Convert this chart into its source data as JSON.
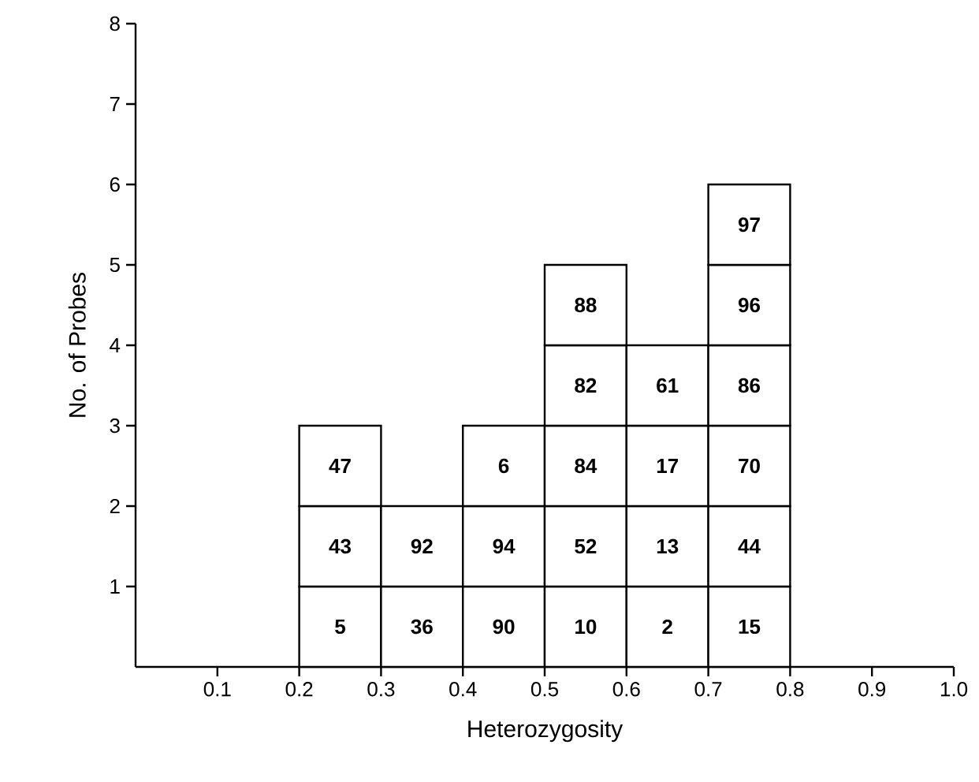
{
  "chart_data": {
    "type": "bar",
    "stacked": true,
    "xlabel": "Heterozygosity",
    "ylabel": "No. of Probes",
    "x": [
      0.25,
      0.35,
      0.45,
      0.55,
      0.65,
      0.75
    ],
    "series": [
      {
        "color": "#ffffff",
        "values": [
          1,
          1,
          1,
          1,
          1,
          1
        ]
      },
      {
        "color": "#ffffff",
        "values": [
          1,
          1,
          1,
          1,
          1,
          1
        ]
      },
      {
        "color": "#ffffff",
        "values": [
          1,
          null,
          1,
          1,
          1,
          1
        ]
      },
      {
        "color": "#ffffff",
        "values": [
          null,
          null,
          null,
          1,
          1,
          1
        ]
      },
      {
        "color": "#ffffff",
        "values": [
          null,
          null,
          null,
          1,
          null,
          1
        ]
      },
      {
        "color": "#ffffff",
        "values": [
          null,
          null,
          null,
          null,
          null,
          1
        ]
      }
    ],
    "annotations": [
      "5",
      "36",
      "90",
      "10",
      "2",
      "15",
      "43",
      "92",
      "94",
      "52",
      "13",
      "44",
      "47",
      "6",
      "84",
      "17",
      "70",
      "82",
      "61",
      "86",
      "88",
      "96",
      "97"
    ],
    "xlim": [
      0,
      1.0
    ],
    "ylim": [
      0,
      8
    ],
    "xticks": [
      0.1,
      0.2,
      0.3,
      0.4,
      0.5,
      0.6,
      0.7,
      0.8,
      0.9,
      {
        "value": 1.0,
        "label": "1.0"
      }
    ],
    "yticks": [
      1,
      2,
      3,
      4,
      5,
      6,
      7,
      8
    ]
  }
}
